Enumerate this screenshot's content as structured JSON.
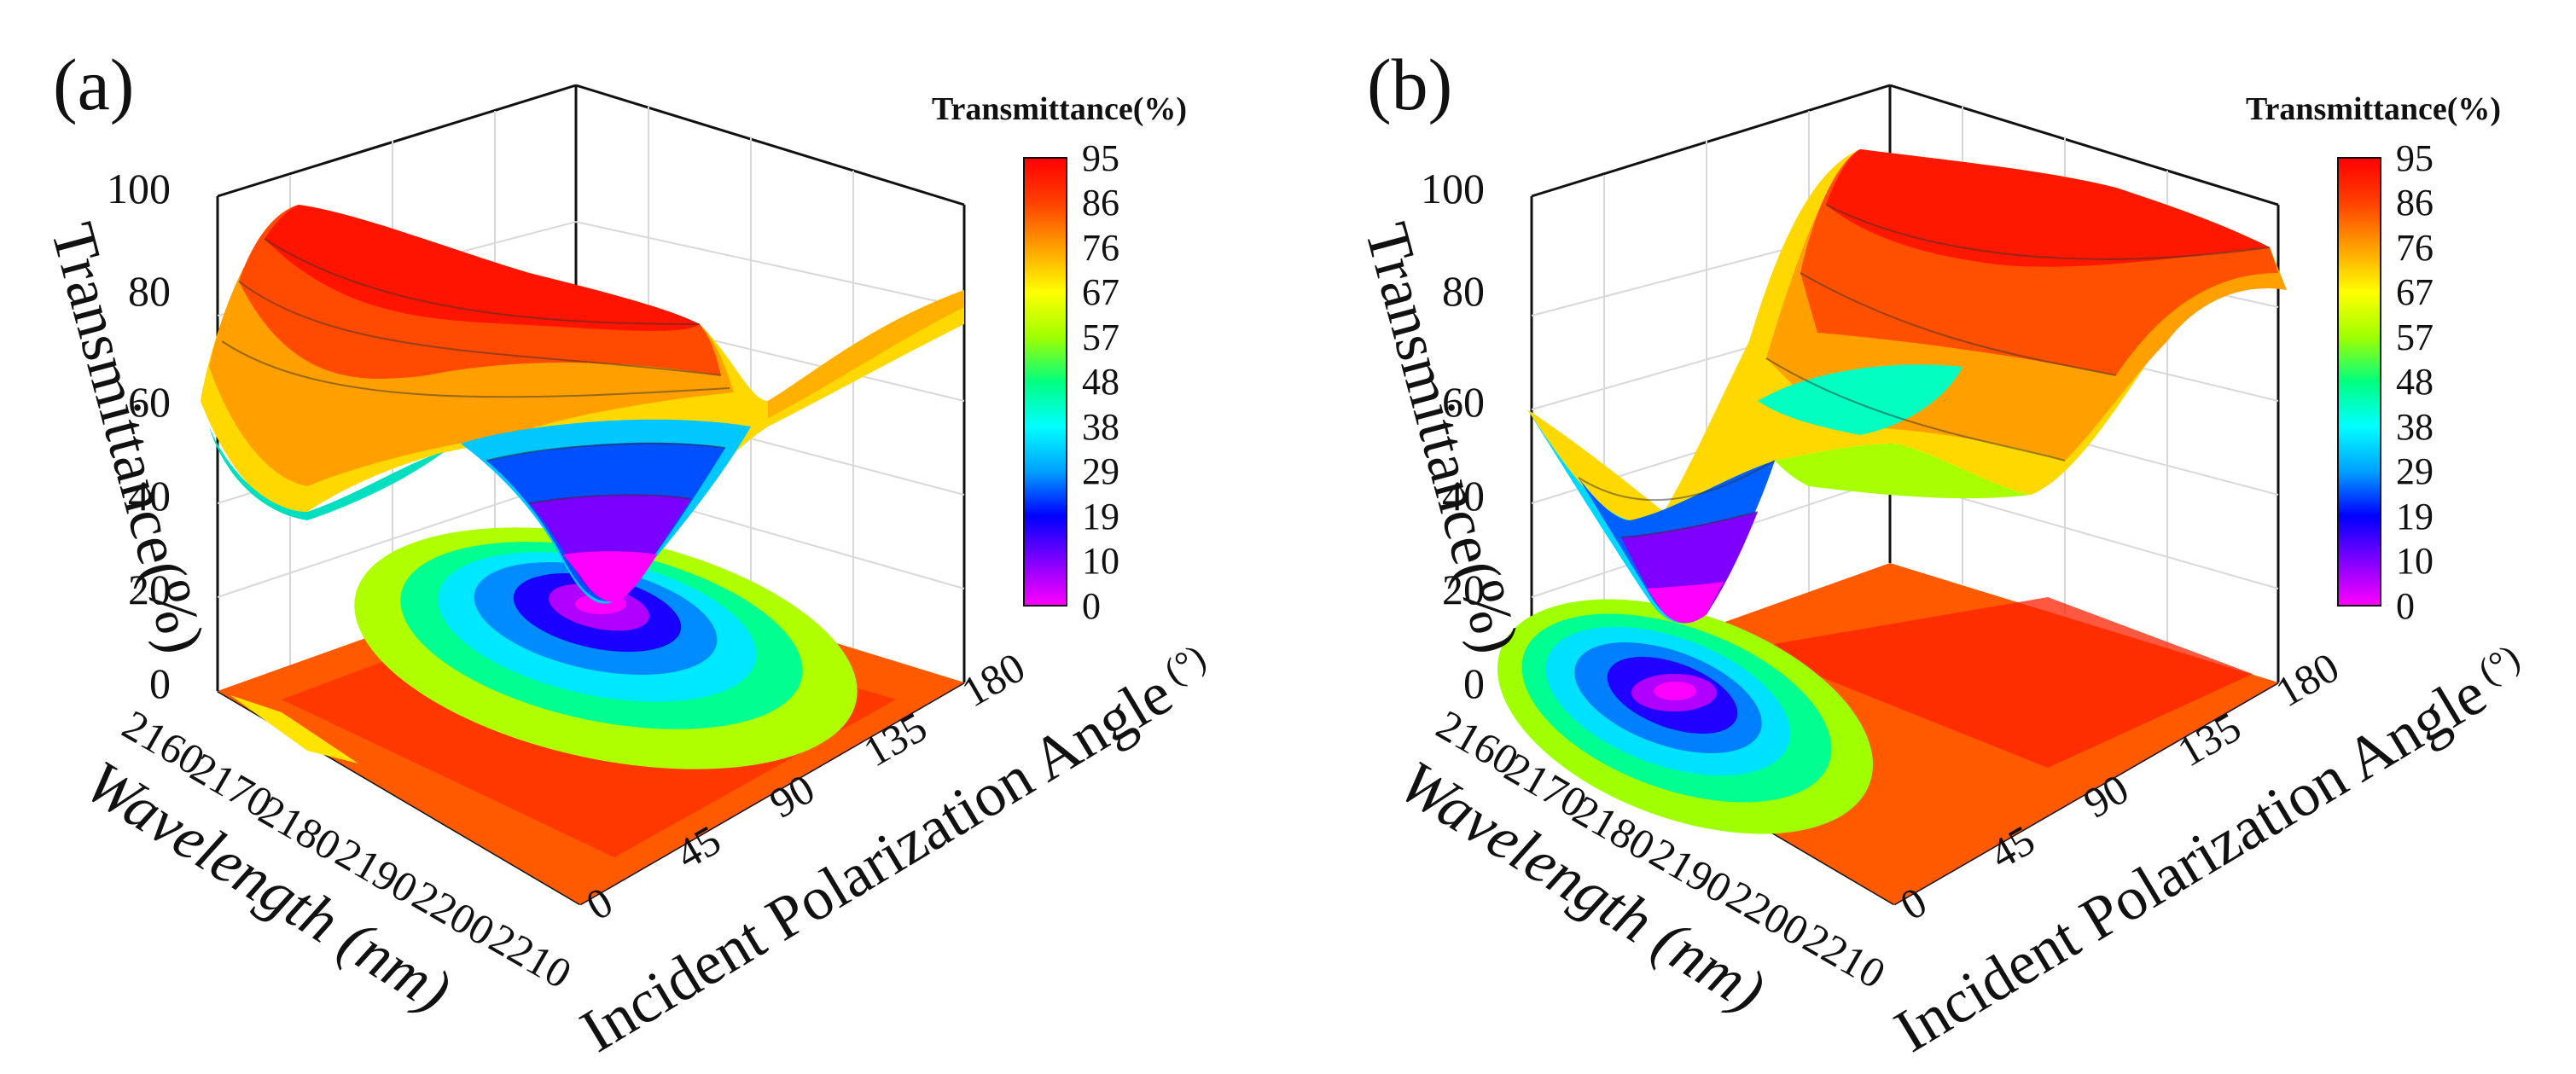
{
  "chart_data": [
    {
      "type": "surface3d",
      "panel_label": "(a)",
      "title": "",
      "zlabel": "Transmittance(%)",
      "xlabel": "Wavelength (nm)",
      "ylabel": "Incident Polarization Angle",
      "ylabel_unit": "(°)",
      "x_ticks": [
        "2160",
        "2170",
        "2180",
        "2190",
        "2200",
        "2210"
      ],
      "y_ticks": [
        "0",
        "45",
        "90",
        "135",
        "180"
      ],
      "z_ticks": [
        "0",
        "20",
        "40",
        "60",
        "80",
        "100"
      ],
      "xlim": [
        2160,
        2210
      ],
      "ylim": [
        0,
        180
      ],
      "zlim": [
        0,
        100
      ],
      "colorbar_title": "Transmittance(%)",
      "colorbar_ticks": [
        "95",
        "86",
        "76",
        "67",
        "57",
        "48",
        "38",
        "29",
        "19",
        "10",
        "0"
      ],
      "resonance_center_wavelength": 2185,
      "resonance_center_angle": 90,
      "min_transmittance": 2,
      "max_transmittance": 92
    },
    {
      "type": "surface3d",
      "panel_label": "(b)",
      "title": "",
      "zlabel": "Transmittance(%)",
      "xlabel": "Wavelength (nm)",
      "ylabel": "Incident Polarization Angle",
      "ylabel_unit": "(°)",
      "x_ticks": [
        "2160",
        "2170",
        "2180",
        "2190",
        "2200",
        "2210"
      ],
      "y_ticks": [
        "0",
        "45",
        "90",
        "135",
        "180"
      ],
      "z_ticks": [
        "0",
        "20",
        "40",
        "60",
        "80",
        "100"
      ],
      "xlim": [
        2160,
        2210
      ],
      "ylim": [
        0,
        180
      ],
      "zlim": [
        0,
        100
      ],
      "colorbar_title": "Transmittance(%)",
      "colorbar_ticks": [
        "95",
        "86",
        "76",
        "67",
        "57",
        "48",
        "38",
        "29",
        "19",
        "10",
        "0"
      ],
      "resonance_center_wavelength": 2172,
      "resonance_center_angle": 30,
      "min_transmittance": 2,
      "max_transmittance": 95
    }
  ],
  "colormap": [
    "#ff00ff",
    "#8000ff",
    "#0000ff",
    "#00a0ff",
    "#00ffff",
    "#00ff80",
    "#a0ff00",
    "#ffff00",
    "#ffa000",
    "#ff4000",
    "#ff0000"
  ]
}
